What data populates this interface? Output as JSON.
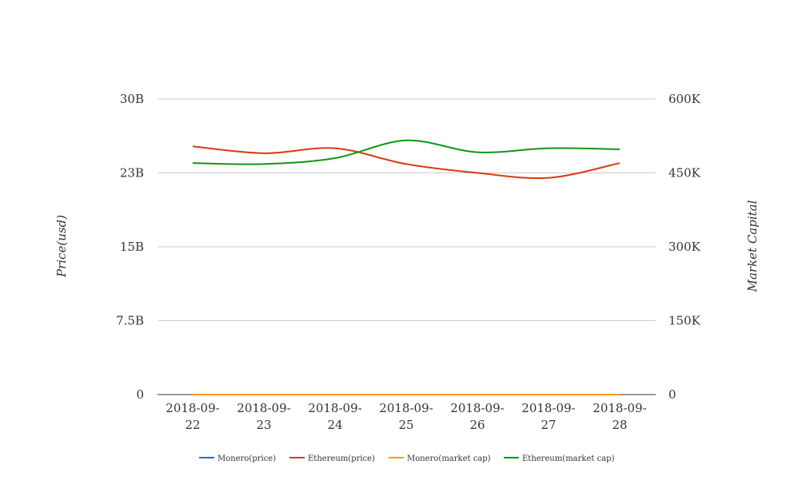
{
  "chart_data": {
    "type": "line",
    "categories": [
      "2018-09-22",
      "2018-09-23",
      "2018-09-24",
      "2018-09-25",
      "2018-09-26",
      "2018-09-27",
      "2018-09-28"
    ],
    "category_lines": [
      [
        "2018-09-",
        "22"
      ],
      [
        "2018-09-",
        "23"
      ],
      [
        "2018-09-",
        "24"
      ],
      [
        "2018-09-",
        "25"
      ],
      [
        "2018-09-",
        "26"
      ],
      [
        "2018-09-",
        "27"
      ],
      [
        "2018-09-",
        "28"
      ]
    ],
    "left_axis": {
      "label": "Price(usd)",
      "range": [
        0,
        30000000000
      ],
      "ticks": [
        0,
        7500000000,
        15000000000,
        22500000000,
        30000000000
      ],
      "tick_labels": [
        "0",
        "7.5B",
        "15B",
        "23B",
        "30B"
      ]
    },
    "right_axis": {
      "label": "Market Capital",
      "range": [
        0,
        600000
      ],
      "ticks": [
        0,
        150000,
        300000,
        450000,
        600000
      ],
      "tick_labels": [
        "0",
        "150K",
        "300K",
        "450K",
        "600K"
      ]
    },
    "series": [
      {
        "name": "Monero(price)",
        "axis": "left",
        "color": "#3366cc",
        "values": [
          0,
          0,
          0,
          0,
          0,
          0,
          0
        ]
      },
      {
        "name": "Ethereum(price)",
        "axis": "left",
        "color": "#dc3912",
        "values": [
          25200000000,
          24500000000,
          25000000000,
          23400000000,
          22500000000,
          22000000000,
          23500000000
        ]
      },
      {
        "name": "Monero(market cap)",
        "axis": "left",
        "color": "#ff9900",
        "values": [
          0,
          0,
          0,
          0,
          0,
          0,
          0
        ]
      },
      {
        "name": "Ethereum(market cap)",
        "axis": "left",
        "color": "#109618",
        "values": [
          23500000000,
          23400000000,
          24000000000,
          25800000000,
          24600000000,
          25000000000,
          24900000000
        ]
      }
    ],
    "grid": true,
    "legend_position": "bottom"
  }
}
